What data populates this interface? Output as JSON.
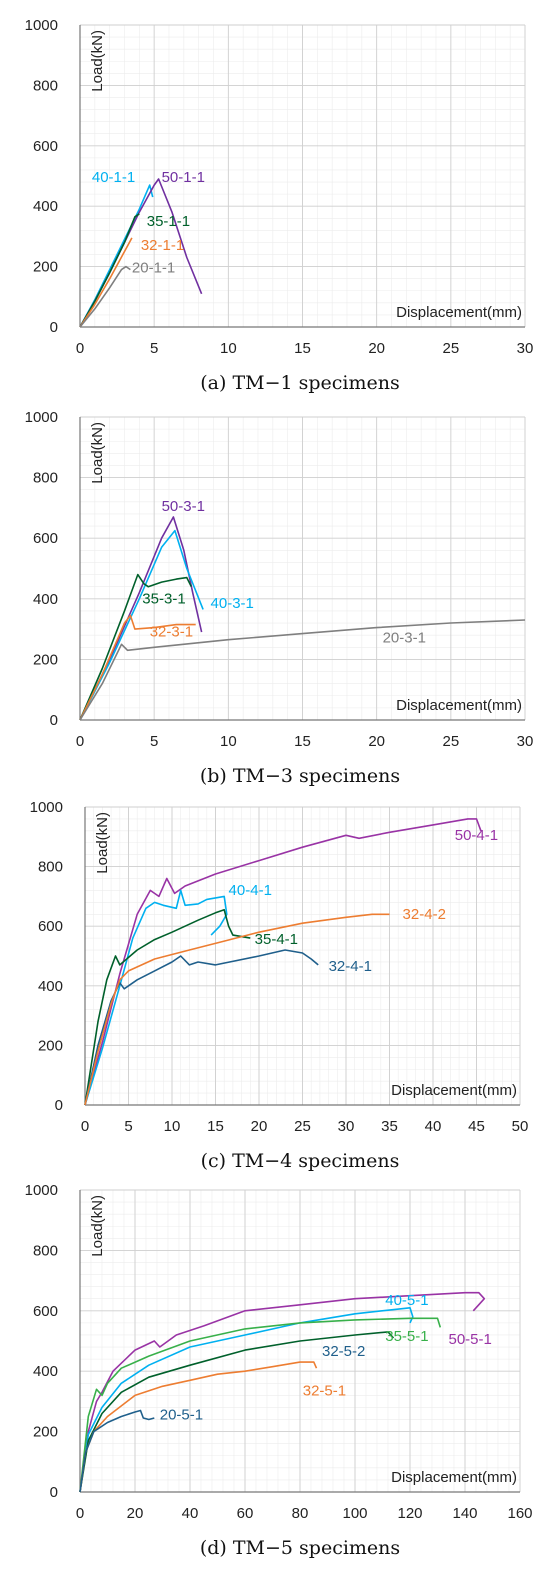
{
  "chart_data": [
    {
      "type": "line",
      "caption": "(a) TM−1 specimens",
      "xlabel": "Displacement(mm)",
      "ylabel": "Load(kN)",
      "xlim": [
        0,
        30
      ],
      "ylim": [
        0,
        1000
      ],
      "xticks": [
        "0",
        "5",
        "10",
        "15",
        "20",
        "25",
        "30"
      ],
      "yticks": [
        "0",
        "200",
        "400",
        "600",
        "800",
        "1000"
      ],
      "grid": true,
      "series": [
        {
          "name": "40-1-1",
          "color": "#00b0f0",
          "x": [
            0,
            1,
            2,
            3,
            4,
            4.7,
            4.9
          ],
          "y": [
            0,
            90,
            190,
            290,
            390,
            470,
            430
          ]
        },
        {
          "name": "50-1-1",
          "color": "#7030a0",
          "x": [
            0,
            1,
            2,
            3,
            4,
            5,
            5.3,
            6.2,
            7.2,
            8.2
          ],
          "y": [
            0,
            85,
            180,
            280,
            380,
            470,
            490,
            380,
            230,
            110
          ]
        },
        {
          "name": "35-1-1",
          "color": "#00602b",
          "x": [
            0,
            1,
            2,
            3,
            3.7,
            4
          ],
          "y": [
            0,
            85,
            180,
            280,
            365,
            375
          ]
        },
        {
          "name": "32-1-1",
          "color": "#ed7d31",
          "x": [
            0,
            1,
            2,
            3.0,
            3.5
          ],
          "y": [
            0,
            75,
            160,
            250,
            295
          ]
        },
        {
          "name": "20-1-1",
          "color": "#7f7f7f",
          "x": [
            0,
            1,
            2,
            2.8,
            3.1,
            3.4
          ],
          "y": [
            0,
            60,
            130,
            190,
            200,
            190
          ]
        }
      ],
      "labels": [
        {
          "text": "40-1-1",
          "color": "#00b0f0",
          "x": 0.8,
          "y": 480
        },
        {
          "text": "50-1-1",
          "color": "#7030a0",
          "x": 5.5,
          "y": 480
        },
        {
          "text": "35-1-1",
          "color": "#00602b",
          "x": 4.5,
          "y": 335
        },
        {
          "text": "32-1-1",
          "color": "#ed7d31",
          "x": 4.1,
          "y": 255
        },
        {
          "text": "20-1-1",
          "color": "#7f7f7f",
          "x": 3.5,
          "y": 180
        }
      ]
    },
    {
      "type": "line",
      "caption": "(b) TM−3 specimens",
      "xlabel": "Displacement(mm)",
      "ylabel": "Load(kN)",
      "xlim": [
        0,
        30
      ],
      "ylim": [
        0,
        1000
      ],
      "xticks": [
        "0",
        "5",
        "10",
        "15",
        "20",
        "25",
        "30"
      ],
      "yticks": [
        "0",
        "200",
        "400",
        "600",
        "800",
        "1000"
      ],
      "grid": true,
      "series": [
        {
          "name": "50-3-1",
          "color": "#7030a0",
          "x": [
            0,
            2,
            4,
            5.5,
            6.3,
            7,
            7.6,
            8.2
          ],
          "y": [
            0,
            200,
            420,
            600,
            670,
            560,
            420,
            290
          ]
        },
        {
          "name": "40-3-1",
          "color": "#00b0f0",
          "x": [
            0,
            2,
            4,
            5.5,
            6.4,
            7.2,
            8.3
          ],
          "y": [
            0,
            190,
            400,
            570,
            625,
            500,
            365
          ]
        },
        {
          "name": "35-3-1",
          "color": "#00602b",
          "x": [
            0,
            1.5,
            3,
            3.9,
            4.3,
            4.6,
            5.5,
            6.5,
            7.2,
            7.5
          ],
          "y": [
            0,
            170,
            360,
            480,
            450,
            440,
            455,
            465,
            470,
            440
          ]
        },
        {
          "name": "32-3-1",
          "color": "#ed7d31",
          "x": [
            0,
            1.5,
            3,
            3.4,
            3.7,
            5,
            6.5,
            7.8
          ],
          "y": [
            0,
            150,
            320,
            345,
            300,
            305,
            315,
            315
          ]
        },
        {
          "name": "20-3-1",
          "color": "#7f7f7f",
          "x": [
            0,
            1.5,
            2.8,
            3.2,
            5,
            10,
            15,
            20,
            25,
            30
          ],
          "y": [
            0,
            120,
            250,
            230,
            240,
            265,
            285,
            305,
            320,
            330
          ]
        }
      ],
      "labels": [
        {
          "text": "50-3-1",
          "color": "#7030a0",
          "x": 5.5,
          "y": 690
        },
        {
          "text": "40-3-1",
          "color": "#00b0f0",
          "x": 8.8,
          "y": 370
        },
        {
          "text": "35-3-1",
          "color": "#00602b",
          "x": 4.2,
          "y": 385
        },
        {
          "text": "32-3-1",
          "color": "#ed7d31",
          "x": 4.7,
          "y": 275
        },
        {
          "text": "20-3-1",
          "color": "#7f7f7f",
          "x": 20.4,
          "y": 255
        }
      ]
    },
    {
      "type": "line",
      "caption": "(c) TM−4 specimens",
      "xlabel": "Displacement(mm)",
      "ylabel": "Load(kN)",
      "xlim": [
        0,
        50
      ],
      "ylim": [
        0,
        1000
      ],
      "xticks": [
        "0",
        "5",
        "10",
        "15",
        "20",
        "25",
        "30",
        "35",
        "40",
        "45",
        "50"
      ],
      "yticks": [
        "0",
        "200",
        "400",
        "600",
        "800",
        "1000"
      ],
      "grid": true,
      "series": [
        {
          "name": "50-4-1",
          "color": "#9933a5",
          "x": [
            0,
            2,
            4,
            6,
            7.5,
            8.5,
            9.4,
            10.3,
            11.5,
            15,
            20,
            25,
            30,
            31.5,
            35,
            40,
            44,
            45,
            45.5
          ],
          "y": [
            0,
            210,
            440,
            640,
            720,
            700,
            760,
            710,
            735,
            775,
            820,
            865,
            905,
            895,
            915,
            940,
            960,
            960,
            920
          ]
        },
        {
          "name": "40-4-1",
          "color": "#00b0f0",
          "x": [
            0,
            2,
            4,
            5.5,
            7,
            8,
            9,
            10.5,
            11,
            11.5,
            13,
            14,
            16,
            16.3,
            15.5,
            14.5
          ],
          "y": [
            0,
            190,
            400,
            560,
            660,
            680,
            670,
            660,
            720,
            670,
            675,
            690,
            700,
            640,
            600,
            570
          ]
        },
        {
          "name": "35-4-1",
          "color": "#00602b",
          "x": [
            0,
            1.5,
            2.5,
            3.5,
            4,
            6,
            8,
            10,
            13,
            15,
            16,
            16.5,
            17,
            18,
            19
          ],
          "y": [
            0,
            280,
            420,
            500,
            470,
            520,
            555,
            580,
            620,
            645,
            655,
            600,
            570,
            565,
            560
          ]
        },
        {
          "name": "32-4-1",
          "color": "#1f5f8b",
          "x": [
            0,
            1.5,
            3,
            4,
            4.5,
            6,
            8,
            10,
            11,
            12,
            13,
            15,
            20,
            23,
            25,
            26,
            26.8
          ],
          "y": [
            0,
            200,
            350,
            410,
            390,
            420,
            450,
            480,
            500,
            470,
            480,
            470,
            500,
            520,
            510,
            490,
            470
          ]
        },
        {
          "name": "32-4-2",
          "color": "#ed7d31",
          "x": [
            0,
            1.5,
            3,
            4,
            5,
            8,
            12,
            16,
            20,
            25,
            30,
            33,
            35
          ],
          "y": [
            0,
            180,
            340,
            420,
            450,
            490,
            520,
            550,
            580,
            610,
            630,
            640,
            640
          ]
        }
      ],
      "labels": [
        {
          "text": "50-4-1",
          "color": "#9933a5",
          "x": 42.5,
          "y": 890
        },
        {
          "text": "40-4-1",
          "color": "#00b0f0",
          "x": 16.5,
          "y": 705
        },
        {
          "text": "32-4-2",
          "color": "#ed7d31",
          "x": 36.5,
          "y": 625
        },
        {
          "text": "35-4-1",
          "color": "#00602b",
          "x": 19.5,
          "y": 540
        },
        {
          "text": "32-4-1",
          "color": "#1f5f8b",
          "x": 28,
          "y": 450
        }
      ]
    },
    {
      "type": "line",
      "caption": "(d) TM−5 specimens",
      "xlabel": "Displacement(mm)",
      "ylabel": "Load(kN)",
      "xlim": [
        0,
        160
      ],
      "ylim": [
        0,
        1000
      ],
      "xticks": [
        "0",
        "20",
        "40",
        "60",
        "80",
        "100",
        "120",
        "140",
        "160"
      ],
      "yticks": [
        "0",
        "200",
        "400",
        "600",
        "800",
        "1000"
      ],
      "grid": true,
      "series": [
        {
          "name": "50-5-1",
          "color": "#9933a5",
          "x": [
            0,
            3,
            6,
            8,
            12,
            20,
            27,
            29,
            35,
            45,
            60,
            80,
            100,
            120,
            140,
            145,
            147,
            143
          ],
          "y": [
            0,
            200,
            300,
            330,
            400,
            470,
            500,
            480,
            520,
            550,
            600,
            620,
            640,
            650,
            660,
            660,
            640,
            600
          ]
        },
        {
          "name": "40-5-1",
          "color": "#00b0f0",
          "x": [
            0,
            3,
            8,
            15,
            25,
            40,
            60,
            80,
            100,
            115,
            120,
            121,
            120
          ],
          "y": [
            0,
            190,
            280,
            360,
            420,
            480,
            520,
            560,
            590,
            605,
            610,
            580,
            560
          ]
        },
        {
          "name": "35-5-1",
          "color": "#38b04a",
          "x": [
            0,
            3,
            6,
            8,
            10,
            15,
            25,
            40,
            60,
            80,
            100,
            120,
            130,
            131
          ],
          "y": [
            0,
            250,
            340,
            320,
            360,
            410,
            450,
            500,
            540,
            560,
            570,
            575,
            575,
            545
          ]
        },
        {
          "name": "32-5-2",
          "color": "#00602b",
          "x": [
            0,
            3,
            8,
            15,
            25,
            40,
            60,
            80,
            100,
            112,
            114
          ],
          "y": [
            0,
            170,
            260,
            330,
            380,
            420,
            470,
            500,
            520,
            530,
            510
          ]
        },
        {
          "name": "32-5-1",
          "color": "#ed7d31",
          "x": [
            0,
            2,
            5,
            10,
            20,
            30,
            40,
            50,
            60,
            70,
            80,
            85,
            86
          ],
          "y": [
            0,
            130,
            200,
            250,
            320,
            350,
            370,
            390,
            400,
            415,
            430,
            430,
            410
          ]
        },
        {
          "name": "20-5-1",
          "color": "#1f5f8b",
          "x": [
            0,
            2,
            5,
            10,
            15,
            20,
            22,
            23,
            25,
            27
          ],
          "y": [
            0,
            130,
            200,
            230,
            250,
            265,
            270,
            245,
            240,
            245
          ]
        }
      ],
      "labels": [
        {
          "text": "40-5-1",
          "color": "#00b0f0",
          "x": 111,
          "y": 620
        },
        {
          "text": "50-5-1",
          "color": "#9933a5",
          "x": 134,
          "y": 490
        },
        {
          "text": "35-5-1",
          "color": "#38b04a",
          "x": 111,
          "y": 500
        },
        {
          "text": "32-5-2",
          "color": "#1f5f8b",
          "x": 88,
          "y": 450
        },
        {
          "text": "32-5-1",
          "color": "#ed7d31",
          "x": 81,
          "y": 320
        },
        {
          "text": "20-5-1",
          "color": "#1f5f8b",
          "x": 29,
          "y": 240
        }
      ]
    }
  ]
}
